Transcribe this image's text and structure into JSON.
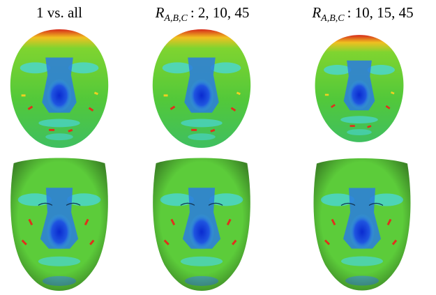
{
  "columns": [
    {
      "title": {
        "text": "1 vs. all"
      }
    },
    {
      "title": {
        "symbol": "R",
        "subscript": "A,B,C",
        "text": ": 2, 10, 45"
      }
    },
    {
      "title": {
        "symbol": "R",
        "subscript": "A,B,C",
        "text": ": 10, 15, 45"
      }
    }
  ]
}
